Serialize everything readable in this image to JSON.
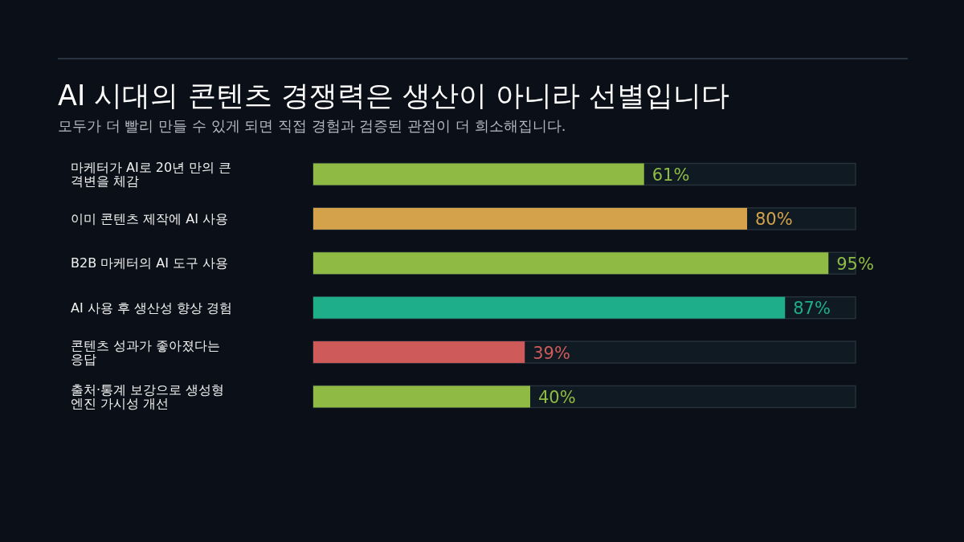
{
  "chart_data": {
    "type": "bar",
    "orientation": "horizontal",
    "title": "AI 시대의 콘텐츠 경쟁력은 생산이 아니라 선별입니다",
    "subtitle": "모두가 더 빨리 만들 수 있게 되면 직접 경험과 검증된 관점이 더 희소해집니다.",
    "categories": [
      "마케터가 AI로 20년 만의 큰 격변을 체감",
      "이미 콘텐츠 제작에 AI 사용",
      "B2B 마케터의 AI 도구 사용",
      "AI 사용 후 생산성 향상 경험",
      "콘텐츠 성과가 좋아졌다는 응답",
      "출처·통계 보강으로 생성형 엔진 가시성 개선"
    ],
    "values": [
      61,
      80,
      95,
      87,
      39,
      40
    ],
    "colors": [
      "#8fbb45",
      "#d4a24a",
      "#8fbb45",
      "#1fae8a",
      "#cf5a5a",
      "#8fbb45"
    ],
    "value_labels": [
      "61%",
      "80%",
      "95%",
      "87%",
      "39%",
      "40%"
    ],
    "xlim": [
      0,
      100
    ]
  }
}
